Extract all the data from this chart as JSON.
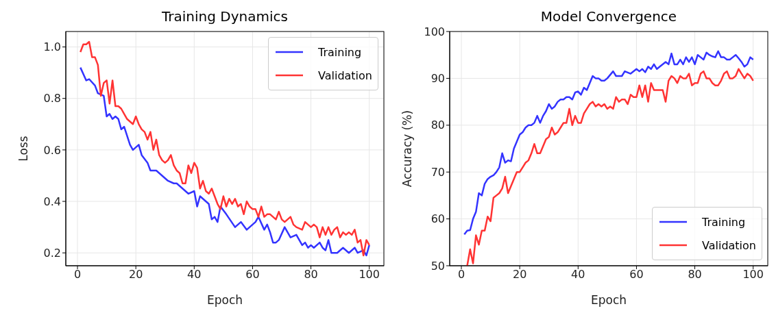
{
  "chart_data": [
    {
      "type": "line",
      "title": "Training Dynamics",
      "xlabel": "Epoch",
      "ylabel": "Loss",
      "xlim": [
        -4,
        105
      ],
      "xticks": [
        0,
        20,
        40,
        60,
        80,
        100
      ],
      "ylim": [
        0.15,
        1.06
      ],
      "yticks": [
        0.2,
        0.4,
        0.6,
        0.8,
        {
          "value": 1,
          "label": "1.0"
        }
      ],
      "grid": true,
      "legend": "top right",
      "series": [
        {
          "name": "Training",
          "color": "#3333ff",
          "x": [
            1,
            3,
            4,
            6,
            7,
            9,
            10,
            11,
            12,
            13,
            14,
            15,
            16,
            18,
            19,
            21,
            22,
            24,
            25,
            27,
            29,
            31,
            33,
            34,
            36,
            38,
            40,
            41,
            42,
            44,
            45,
            46,
            47,
            48,
            49,
            51,
            54,
            56,
            58,
            60,
            61,
            62,
            64,
            65,
            66,
            67,
            68,
            69,
            71,
            73,
            75,
            77,
            78,
            79,
            80,
            81,
            83,
            84,
            85,
            86,
            87,
            89,
            91,
            93,
            95,
            96,
            98,
            99,
            100
          ],
          "values": [
            0.92,
            0.87,
            0.875,
            0.85,
            0.82,
            0.81,
            0.73,
            0.74,
            0.72,
            0.73,
            0.72,
            0.68,
            0.69,
            0.62,
            0.6,
            0.62,
            0.58,
            0.55,
            0.52,
            0.52,
            0.5,
            0.48,
            0.47,
            0.47,
            0.45,
            0.43,
            0.44,
            0.38,
            0.42,
            0.4,
            0.39,
            0.33,
            0.34,
            0.32,
            0.38,
            0.35,
            0.3,
            0.32,
            0.29,
            0.31,
            0.32,
            0.34,
            0.29,
            0.31,
            0.28,
            0.24,
            0.24,
            0.25,
            0.3,
            0.26,
            0.27,
            0.23,
            0.24,
            0.22,
            0.23,
            0.22,
            0.24,
            0.22,
            0.21,
            0.25,
            0.2,
            0.2,
            0.22,
            0.2,
            0.22,
            0.2,
            0.21,
            0.19,
            0.23
          ]
        },
        {
          "name": "Validation",
          "color": "#ff3333",
          "x": [
            1,
            2,
            3,
            4,
            5,
            6,
            7,
            8,
            9,
            10,
            11,
            12,
            13,
            14,
            15,
            16,
            17,
            18,
            19,
            20,
            21,
            22,
            23,
            24,
            25,
            26,
            27,
            28,
            29,
            30,
            31,
            32,
            33,
            34,
            35,
            36,
            37,
            38,
            39,
            40,
            41,
            42,
            43,
            44,
            45,
            46,
            47,
            48,
            49,
            50,
            51,
            52,
            53,
            54,
            55,
            56,
            57,
            58,
            59,
            60,
            61,
            62,
            63,
            64,
            65,
            66,
            67,
            68,
            69,
            70,
            71,
            72,
            73,
            74,
            75,
            77,
            78,
            80,
            81,
            82,
            83,
            84,
            85,
            86,
            87,
            88,
            89,
            90,
            91,
            92,
            93,
            94,
            95,
            96,
            97,
            98,
            99,
            100
          ],
          "values": [
            0.98,
            1.01,
            1.01,
            1.02,
            0.96,
            0.96,
            0.93,
            0.81,
            0.86,
            0.87,
            0.78,
            0.87,
            0.77,
            0.77,
            0.76,
            0.74,
            0.72,
            0.71,
            0.7,
            0.73,
            0.7,
            0.68,
            0.67,
            0.64,
            0.67,
            0.6,
            0.64,
            0.58,
            0.56,
            0.55,
            0.56,
            0.58,
            0.54,
            0.52,
            0.51,
            0.47,
            0.47,
            0.54,
            0.51,
            0.55,
            0.53,
            0.45,
            0.48,
            0.44,
            0.43,
            0.45,
            0.42,
            0.39,
            0.37,
            0.42,
            0.38,
            0.41,
            0.39,
            0.41,
            0.38,
            0.39,
            0.35,
            0.4,
            0.38,
            0.37,
            0.37,
            0.34,
            0.38,
            0.34,
            0.35,
            0.35,
            0.34,
            0.33,
            0.36,
            0.33,
            0.32,
            0.33,
            0.34,
            0.31,
            0.3,
            0.29,
            0.32,
            0.3,
            0.31,
            0.3,
            0.26,
            0.3,
            0.27,
            0.3,
            0.27,
            0.29,
            0.3,
            0.26,
            0.28,
            0.27,
            0.28,
            0.27,
            0.29,
            0.24,
            0.25,
            0.19,
            0.25,
            0.23
          ]
        }
      ]
    },
    {
      "type": "line",
      "title": "Model Convergence",
      "xlabel": "Epoch",
      "ylabel": "Accuracy (%)",
      "xlim": [
        -4,
        105
      ],
      "xticks": [
        0,
        20,
        40,
        60,
        80,
        100
      ],
      "ylim": [
        50,
        100
      ],
      "yticks": [
        50,
        60,
        70,
        80,
        90,
        100
      ],
      "grid": true,
      "legend": "bottom right",
      "series": [
        {
          "name": "Training",
          "color": "#3333ff",
          "x": [
            1,
            2,
            3,
            4,
            5,
            6,
            7,
            8,
            9,
            10,
            11,
            12,
            13,
            14,
            15,
            16,
            17,
            18,
            19,
            20,
            21,
            22,
            23,
            24,
            25,
            26,
            27,
            28,
            29,
            30,
            31,
            32,
            33,
            34,
            35,
            36,
            37,
            38,
            39,
            40,
            41,
            42,
            43,
            44,
            45,
            46,
            47,
            48,
            49,
            50,
            52,
            53,
            55,
            56,
            58,
            60,
            61,
            62,
            63,
            64,
            65,
            66,
            67,
            68,
            70,
            71,
            72,
            73,
            74,
            75,
            76,
            77,
            78,
            79,
            80,
            81,
            82,
            83,
            84,
            85,
            86,
            87,
            88,
            89,
            90,
            91,
            92,
            93,
            94,
            95,
            96,
            97,
            98,
            99,
            100
          ],
          "values": [
            56.7,
            57.5,
            57.6,
            60,
            61.5,
            65.5,
            65,
            67.5,
            68.5,
            69,
            69.3,
            70,
            71,
            74,
            72,
            72.5,
            72.3,
            75,
            76.5,
            78,
            78.5,
            79.5,
            80,
            80,
            80.5,
            82,
            80.5,
            82,
            83,
            84.5,
            83.5,
            84,
            85,
            85.5,
            85.5,
            86,
            86,
            85.5,
            87,
            87.2,
            86.5,
            88,
            87.5,
            89,
            90.5,
            90,
            90,
            89.5,
            89.5,
            90,
            91.5,
            90.5,
            90.5,
            91.5,
            91,
            92,
            91.5,
            92,
            91.3,
            92.5,
            92,
            93,
            92,
            92.5,
            93.5,
            93,
            95.3,
            93,
            93,
            94,
            93,
            94.5,
            93.5,
            94.5,
            93,
            95,
            94.5,
            94,
            95.5,
            95,
            94.7,
            94.5,
            95.8,
            94.5,
            94.5,
            94,
            94,
            94.5,
            95,
            94.3,
            93.5,
            92.5,
            93,
            94.5,
            94
          ]
        },
        {
          "name": "Validation",
          "color": "#ff3333",
          "x": [
            2,
            3,
            4,
            5,
            6,
            7,
            8,
            9,
            10,
            11,
            12,
            13,
            14,
            15,
            16,
            17,
            18,
            19,
            20,
            21,
            22,
            23,
            24,
            25,
            26,
            27,
            28,
            29,
            30,
            31,
            32,
            33,
            34,
            35,
            36,
            37,
            38,
            39,
            40,
            41,
            42,
            43,
            44,
            45,
            46,
            47,
            48,
            49,
            50,
            51,
            52,
            53,
            54,
            55,
            56,
            57,
            58,
            59,
            60,
            61,
            62,
            63,
            64,
            65,
            66,
            67,
            68,
            69,
            70,
            71,
            72,
            73,
            74,
            75,
            76,
            77,
            78,
            79,
            80,
            81,
            82,
            83,
            84,
            85,
            86,
            87,
            88,
            89,
            90,
            91,
            92,
            93,
            94,
            95,
            96,
            97,
            98,
            99,
            100
          ],
          "values": [
            50,
            53.5,
            50.5,
            56.5,
            54.5,
            57.5,
            57.5,
            60.5,
            59.5,
            64.5,
            65,
            65.5,
            66.5,
            69,
            65.5,
            67,
            68.5,
            70,
            70,
            71,
            72,
            72.5,
            74,
            76,
            74,
            74,
            75.5,
            77,
            77.5,
            79.5,
            78,
            78.5,
            79.5,
            80.5,
            80.5,
            83.5,
            80,
            82,
            80.5,
            80.5,
            82.5,
            83.5,
            84.5,
            85,
            84,
            84.5,
            84,
            84.5,
            83.5,
            84,
            83.5,
            86,
            85,
            85.5,
            85.5,
            84.5,
            86.5,
            86,
            86,
            88.5,
            86,
            88.5,
            85,
            89,
            87.5,
            87.5,
            87.5,
            87.5,
            85,
            89.5,
            90.5,
            90,
            89,
            90.5,
            90,
            90,
            91,
            88.5,
            89,
            89,
            91,
            91.5,
            90,
            90,
            89,
            88.5,
            88.5,
            89.5,
            91,
            91.5,
            90,
            90,
            90.5,
            92,
            91,
            90,
            91,
            90.5,
            89.5
          ]
        }
      ]
    }
  ]
}
